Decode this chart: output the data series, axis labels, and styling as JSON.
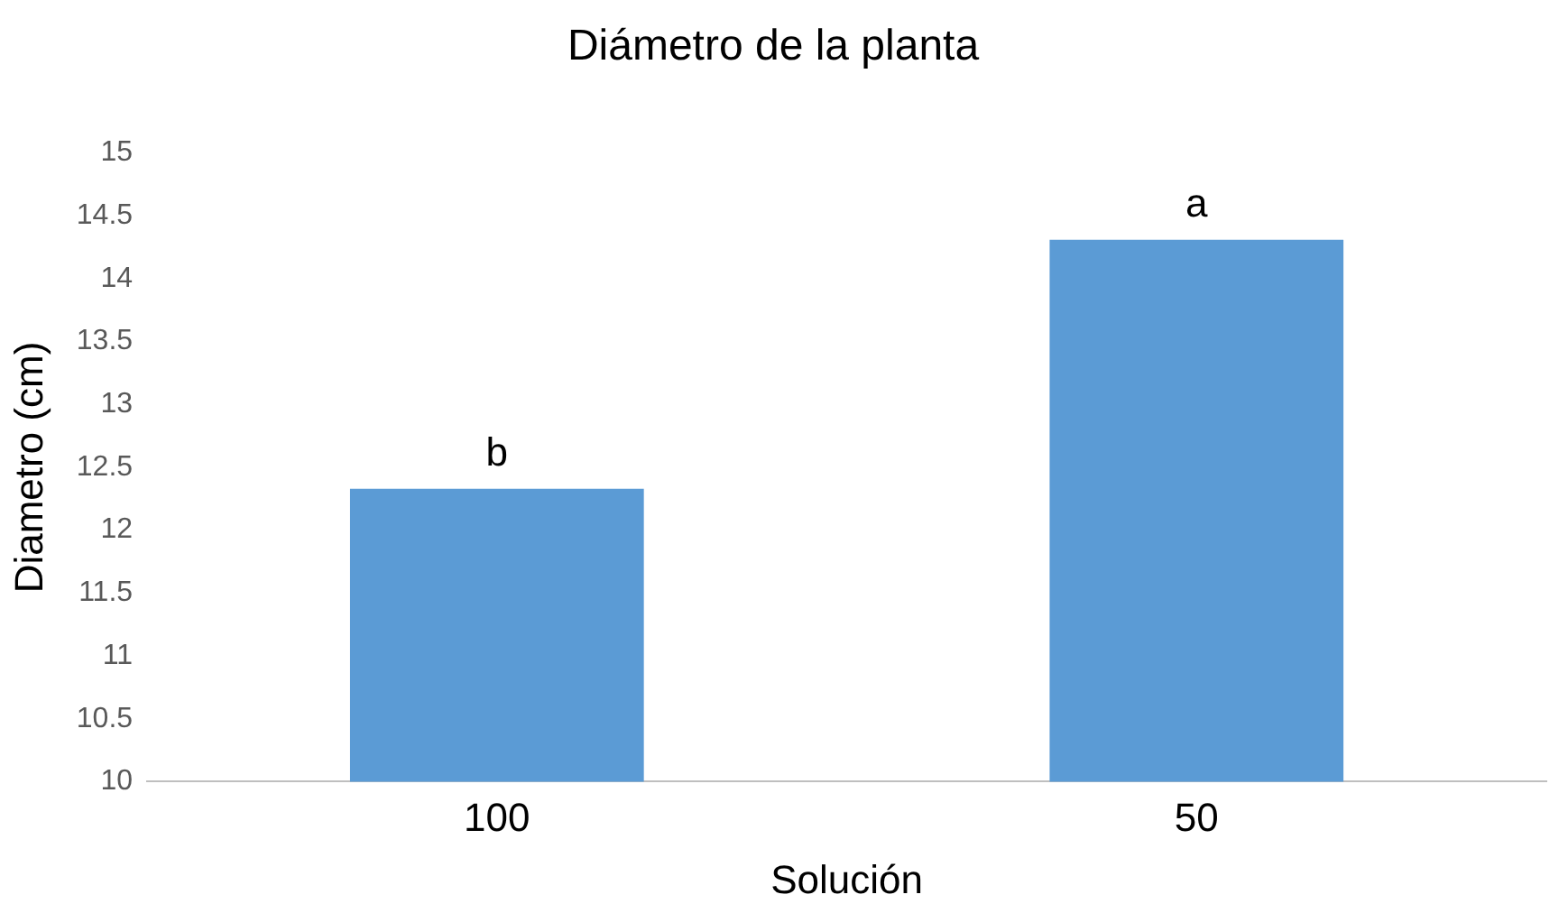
{
  "chart_data": {
    "type": "bar",
    "title": "Diámetro de la planta",
    "xlabel": "Solución",
    "ylabel": "Diametro (cm)",
    "categories": [
      "100",
      "50"
    ],
    "values": [
      12.33,
      14.31
    ],
    "color": "#5b9bd5",
    "ylim": [
      10,
      15
    ],
    "yticks": [
      10,
      10.5,
      11,
      11.5,
      12,
      12.5,
      13,
      13.5,
      14,
      14.5,
      15
    ],
    "grid": false,
    "annotations": [
      {
        "text": "b",
        "x": "100",
        "y": 12.33
      },
      {
        "text": "a",
        "x": "50",
        "y": 14.31
      }
    ]
  }
}
